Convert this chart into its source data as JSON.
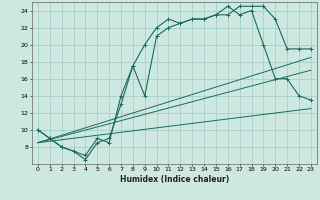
{
  "xlabel": "Humidex (Indice chaleur)",
  "bg_color": "#cce8e0",
  "grid_color": "#aacfc8",
  "line_color": "#1a6b5a",
  "xlim": [
    -0.5,
    23.5
  ],
  "ylim": [
    6,
    25
  ],
  "xticks": [
    0,
    1,
    2,
    3,
    4,
    5,
    6,
    7,
    8,
    9,
    10,
    11,
    12,
    13,
    14,
    15,
    16,
    17,
    18,
    19,
    20,
    21,
    22,
    23
  ],
  "yticks": [
    8,
    10,
    12,
    14,
    16,
    18,
    20,
    22,
    24
  ],
  "curve1_x": [
    0,
    1,
    2,
    3,
    4,
    5,
    6,
    7,
    8,
    9,
    10,
    11,
    12,
    13,
    14,
    15,
    16,
    17,
    18,
    19,
    20,
    21,
    22,
    23
  ],
  "curve1_y": [
    10,
    9,
    8,
    7.5,
    6.5,
    8.5,
    9,
    13,
    17.5,
    14,
    21,
    22,
    22.5,
    23,
    23,
    23.5,
    23.5,
    24.5,
    24.5,
    24.5,
    23,
    19.5,
    19.5,
    19.5
  ],
  "curve2_x": [
    0,
    1,
    2,
    3,
    4,
    5,
    6,
    7,
    8,
    9,
    10,
    11,
    12,
    13,
    14,
    15,
    16,
    17,
    18,
    19,
    20,
    21,
    22,
    23
  ],
  "curve2_y": [
    10,
    9,
    8,
    7.5,
    7,
    9,
    8.5,
    14,
    17.5,
    20,
    22,
    23,
    22.5,
    23,
    23,
    23.5,
    24.5,
    23.5,
    24,
    20,
    16,
    16,
    14,
    13.5
  ],
  "line1_x": [
    0,
    23
  ],
  "line1_y": [
    8.5,
    12.5
  ],
  "line2_x": [
    0,
    23
  ],
  "line2_y": [
    8.5,
    17.0
  ],
  "line3_x": [
    0,
    23
  ],
  "line3_y": [
    8.5,
    18.5
  ]
}
